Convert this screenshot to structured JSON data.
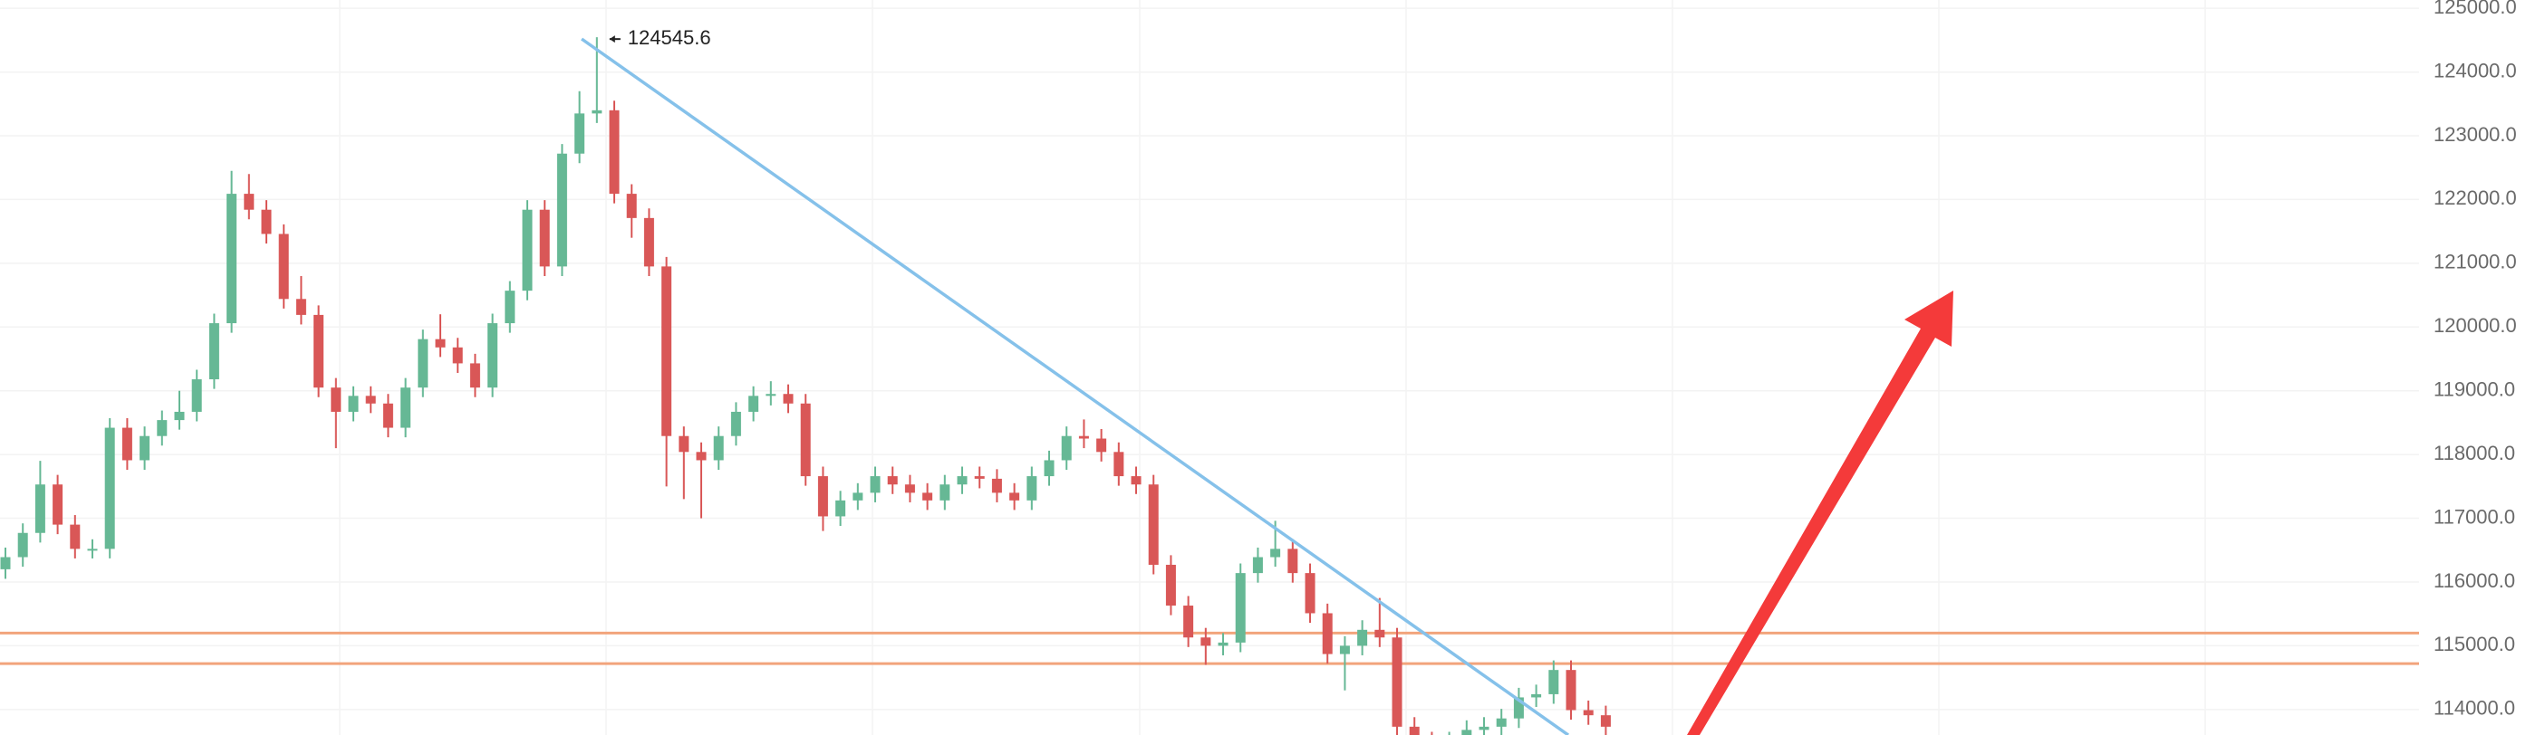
{
  "chart_data": {
    "type": "candlestick",
    "open": [
      116200,
      116390,
      116770,
      117530,
      116900,
      116520,
      116520,
      118420,
      117910,
      118290,
      118540,
      118670,
      119180,
      120060,
      122090,
      121840,
      121460,
      120440,
      120190,
      119050,
      118670,
      118920,
      118800,
      118420,
      119050,
      119810,
      119680,
      119430,
      119050,
      120060,
      120570,
      121840,
      120950,
      122720,
      123350,
      123400,
      122090,
      121710,
      120950,
      118290,
      118040,
      117910,
      118290,
      118670,
      118920,
      118950,
      118800,
      117660,
      117030,
      117280,
      117400,
      117660,
      117530,
      117400,
      117280,
      117530,
      117660,
      117620,
      117400,
      117280,
      117660,
      117910,
      118290,
      118250,
      118040,
      117660,
      117530,
      116270,
      115630,
      115130,
      115000,
      115050,
      116140,
      116390,
      116520,
      116140,
      115510,
      114870,
      115000,
      115250,
      115130,
      113730,
      113500,
      113400,
      113500,
      113680,
      113730,
      113860,
      114190,
      114240,
      114620,
      113990,
      113910
    ],
    "high": [
      116540,
      116920,
      117900,
      117680,
      117050,
      116670,
      118570,
      118570,
      118440,
      118690,
      119000,
      119330,
      120210,
      122450,
      122400,
      121990,
      121610,
      120800,
      120340,
      119200,
      119070,
      119070,
      118950,
      119200,
      119960,
      120200,
      119830,
      119580,
      120210,
      120720,
      121990,
      121990,
      122870,
      123700,
      124545.6,
      123550,
      122240,
      121860,
      121100,
      118440,
      118190,
      118440,
      118820,
      119070,
      119150,
      119100,
      118950,
      117810,
      117430,
      117550,
      117810,
      117810,
      117680,
      117550,
      117680,
      117810,
      117810,
      117770,
      117550,
      117810,
      118060,
      118440,
      118550,
      118400,
      118190,
      117810,
      117680,
      116420,
      115780,
      115280,
      115200,
      116290,
      116540,
      116960,
      116670,
      116290,
      115660,
      115150,
      115400,
      115750,
      115280,
      113880,
      113650,
      113650,
      113830,
      113880,
      114010,
      114340,
      114390,
      114770,
      114770,
      114140,
      114060
    ],
    "low": [
      116050,
      116240,
      116620,
      116750,
      116370,
      116370,
      116370,
      117760,
      117760,
      118140,
      118390,
      118520,
      119030,
      119910,
      121690,
      121310,
      120290,
      120040,
      118900,
      118100,
      118520,
      118650,
      118270,
      118270,
      118900,
      119530,
      119280,
      118900,
      118900,
      119910,
      120420,
      120800,
      120800,
      122570,
      123200,
      121940,
      121400,
      120800,
      117500,
      117300,
      117000,
      117760,
      118140,
      118520,
      118770,
      118650,
      117510,
      116800,
      116880,
      117130,
      117250,
      117380,
      117250,
      117130,
      117130,
      117380,
      117470,
      117250,
      117130,
      117130,
      117510,
      117760,
      118100,
      117890,
      117510,
      117380,
      116120,
      115480,
      114980,
      114700,
      114850,
      114900,
      115990,
      116240,
      115990,
      115360,
      114720,
      114300,
      114850,
      114980,
      113580,
      113350,
      113250,
      113250,
      113350,
      113530,
      113580,
      113710,
      114040,
      114090,
      113840,
      113760,
      113580
    ],
    "close": [
      116390,
      116770,
      117530,
      116900,
      116520,
      116520,
      118420,
      117910,
      118290,
      118540,
      118670,
      119180,
      120060,
      122090,
      121840,
      121460,
      120440,
      120190,
      119050,
      118670,
      118920,
      118800,
      118420,
      119050,
      119810,
      119680,
      119430,
      119050,
      120060,
      120570,
      121840,
      120950,
      122720,
      123350,
      123400,
      122090,
      121710,
      120950,
      118290,
      118040,
      117910,
      118290,
      118670,
      118920,
      118950,
      118800,
      117660,
      117030,
      117280,
      117400,
      117660,
      117530,
      117400,
      117280,
      117530,
      117660,
      117620,
      117400,
      117280,
      117660,
      117910,
      118290,
      118250,
      118040,
      117660,
      117530,
      116270,
      115630,
      115130,
      115000,
      115050,
      116140,
      116390,
      116520,
      116140,
      115510,
      114870,
      115000,
      115250,
      115130,
      113730,
      113500,
      113400,
      113500,
      113680,
      113730,
      113860,
      114190,
      114240,
      114620,
      113990,
      113910,
      113730
    ],
    "up_color": "#66b895",
    "down_color": "#d95757",
    "annotation": {
      "label": "124545.6",
      "index": 34
    },
    "horizontal_lines": [
      115200,
      114720
    ],
    "horizontal_line_color": "#f2a47c",
    "ylim": [
      113600,
      125130
    ],
    "yticks": [
      {
        "value": 125000,
        "label": "125000.0"
      },
      {
        "value": 124000,
        "label": "124000.0"
      },
      {
        "value": 123000,
        "label": "123000.0"
      },
      {
        "value": 122000,
        "label": "122000.0"
      },
      {
        "value": 121000,
        "label": "121000.0"
      },
      {
        "value": 120000,
        "label": "120000.0"
      },
      {
        "value": 119000,
        "label": "119000.0"
      },
      {
        "value": 118000,
        "label": "118000.0"
      },
      {
        "value": 117000,
        "label": "117000.0"
      },
      {
        "value": 116000,
        "label": "116000.0"
      },
      {
        "value": 115000,
        "label": "115000.0"
      },
      {
        "value": 114000,
        "label": "114000.0"
      }
    ],
    "grid": true
  }
}
